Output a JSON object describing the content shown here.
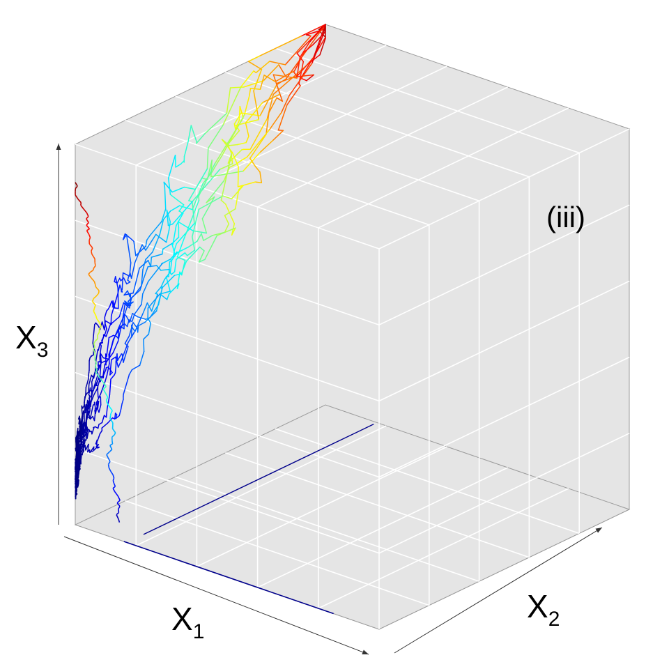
{
  "chart_data": {
    "type": "line",
    "projection": "3d",
    "panel_label": "(iii)",
    "xlabel": "X",
    "xlabel_sub": "1",
    "ylabel": "X",
    "ylabel_sub": "2",
    "zlabel": "X",
    "zlabel_sub": "3",
    "grid": true,
    "box": true,
    "pane_color": "#e5e5e5",
    "grid_color": "#ffffff",
    "edge_color": "#9a9a9a",
    "colormap": "jet",
    "start_point": [
      0,
      1,
      1
    ],
    "trajectory_count": 10,
    "axis_ranges": {
      "x1": [
        0,
        1
      ],
      "x2": [
        0,
        1
      ],
      "x3": [
        0,
        1
      ]
    }
  }
}
